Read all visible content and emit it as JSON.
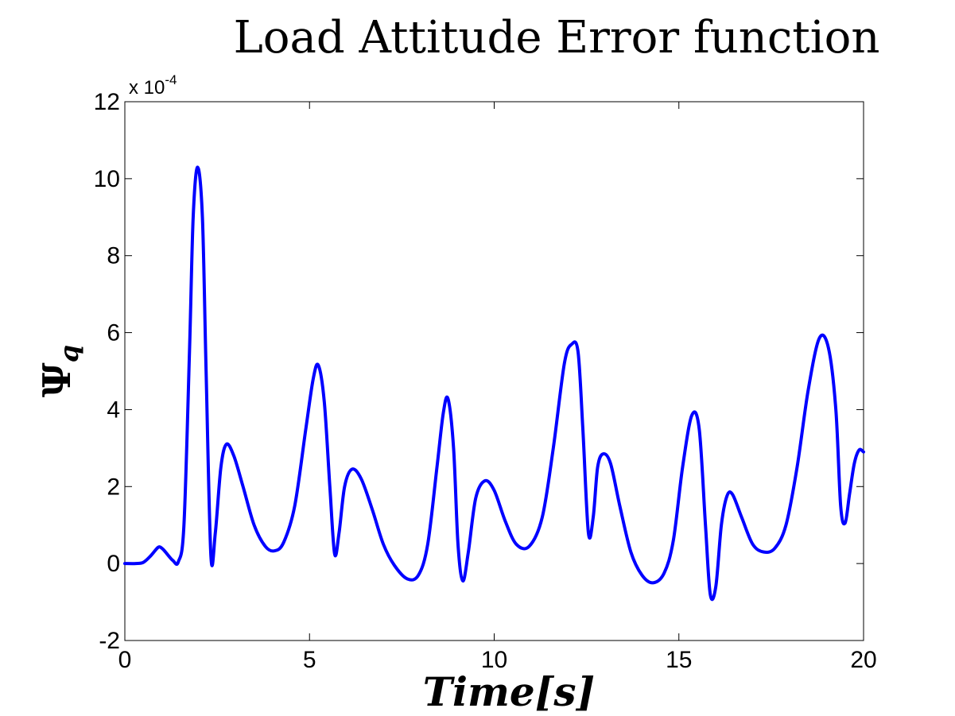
{
  "chart_data": {
    "type": "line",
    "title": "Load Attitude Error function",
    "xlabel": "Time[s]",
    "ylabel": "Ψq",
    "ylabel_main": "Ψ",
    "ylabel_sub": "q",
    "y_multiplier": "x 10",
    "y_multiplier_exp": "-4",
    "xlim": [
      0,
      20
    ],
    "ylim": [
      -2,
      12
    ],
    "xticks": [
      "0",
      "5",
      "10",
      "15",
      "20"
    ],
    "yticks": [
      "-2",
      "0",
      "2",
      "4",
      "6",
      "8",
      "10",
      "12"
    ],
    "grid": false,
    "color": "#0000ff",
    "series": [
      {
        "x": [
          0,
          0.3,
          0.5,
          0.7,
          0.9,
          1.0,
          1.1,
          1.3,
          1.45,
          1.6,
          1.75,
          1.85,
          1.97,
          2.1,
          2.2,
          2.33,
          2.45,
          2.6,
          2.75,
          2.95,
          3.2,
          3.5,
          3.8,
          4.05,
          4.3,
          4.6,
          4.9,
          5.1,
          5.24,
          5.4,
          5.55,
          5.68,
          5.8,
          5.95,
          6.15,
          6.4,
          6.7,
          7.0,
          7.3,
          7.65,
          7.95,
          8.2,
          8.45,
          8.62,
          8.75,
          8.9,
          9.02,
          9.15,
          9.3,
          9.5,
          9.75,
          10.0,
          10.3,
          10.6,
          10.95,
          11.3,
          11.6,
          11.9,
          12.1,
          12.27,
          12.4,
          12.55,
          12.68,
          12.8,
          12.95,
          13.15,
          13.4,
          13.7,
          14.0,
          14.3,
          14.6,
          14.85,
          15.1,
          15.35,
          15.55,
          15.72,
          15.85,
          16.0,
          16.15,
          16.3,
          16.45,
          16.7,
          17.0,
          17.3,
          17.6,
          17.9,
          18.2,
          18.5,
          18.8,
          19.05,
          19.25,
          19.38,
          19.5,
          19.62,
          19.75,
          19.88,
          20.0
        ],
        "values": [
          0,
          0,
          0.03,
          0.2,
          0.42,
          0.4,
          0.3,
          0.08,
          0.05,
          1.0,
          5.5,
          9.0,
          10.3,
          9.0,
          5.0,
          0.2,
          0.8,
          2.5,
          3.1,
          2.8,
          2.0,
          1.0,
          0.45,
          0.33,
          0.55,
          1.5,
          3.5,
          4.8,
          5.15,
          4.2,
          2.0,
          0.25,
          0.8,
          2.0,
          2.45,
          2.2,
          1.4,
          0.5,
          -0.05,
          -0.4,
          -0.3,
          0.5,
          2.5,
          3.9,
          4.28,
          3.0,
          0.5,
          -0.45,
          0.3,
          1.7,
          2.15,
          1.9,
          1.1,
          0.5,
          0.45,
          1.2,
          3.0,
          5.2,
          5.7,
          5.5,
          3.5,
          0.8,
          1.2,
          2.5,
          2.85,
          2.6,
          1.5,
          0.3,
          -0.3,
          -0.5,
          -0.25,
          0.6,
          2.5,
          3.85,
          3.5,
          1.0,
          -0.8,
          -0.6,
          1.0,
          1.75,
          1.8,
          1.2,
          0.5,
          0.3,
          0.4,
          1.0,
          2.5,
          4.5,
          5.85,
          5.6,
          4.0,
          1.5,
          1.05,
          1.8,
          2.6,
          2.95,
          2.9
        ]
      }
    ]
  }
}
